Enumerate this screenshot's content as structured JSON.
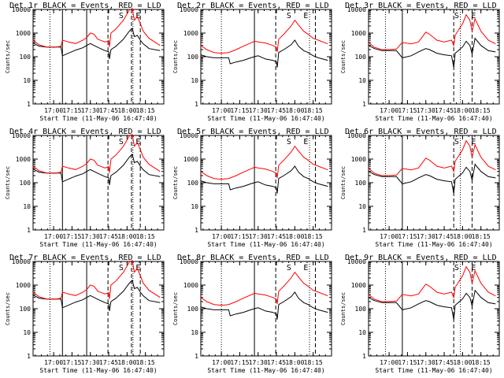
{
  "figure": {
    "x_axis_label": "Start Time (11-May-06 16:47:40)",
    "y_axis_label": "Counts/sec",
    "black_trace_name": "Events",
    "red_trace_name": "LLD"
  },
  "chart_data": [
    {
      "type": "line",
      "title": "Det 1r  BLACK = Events, RED = LLD",
      "markers": [
        {
          "label": "S",
          "time": 17.92
        },
        {
          "label": "E",
          "time": 18.15
        }
      ],
      "solid_lines": [
        17.12,
        17.45
      ],
      "dotted_lines": [
        16.95,
        18.08
      ],
      "dashed_lines": [
        17.74,
        18.06,
        18.18
      ]
    },
    {
      "type": "line",
      "title": "Det 2r  BLACK = Events, RED = LLD",
      "markers": [
        {
          "label": "S",
          "time": 17.92
        },
        {
          "label": "E",
          "time": 18.15
        }
      ],
      "solid_lines": [
        17.45
      ],
      "dotted_lines": [
        17.0,
        18.2
      ],
      "dashed_lines": [
        17.74,
        18.28
      ]
    },
    {
      "type": "line",
      "title": "Det 3r  BLACK = Events, RED = LLD",
      "markers": [
        {
          "label": "S",
          "time": 17.92
        },
        {
          "label": "E",
          "time": 18.15
        }
      ],
      "solid_lines": [
        17.18
      ],
      "dotted_lines": [
        16.95,
        17.97
      ],
      "dashed_lines": [
        17.88,
        18.13
      ]
    },
    {
      "type": "line",
      "title": "Det 4r  BLACK = Events, RED = LLD",
      "markers": [
        {
          "label": "S",
          "time": 17.92
        },
        {
          "label": "E",
          "time": 18.15
        }
      ],
      "solid_lines": [
        17.12,
        17.45
      ],
      "dotted_lines": [
        16.95,
        18.08
      ],
      "dashed_lines": [
        17.74,
        18.06,
        18.18
      ]
    },
    {
      "type": "line",
      "title": "Det 5r  BLACK = Events, RED = LLD",
      "markers": [
        {
          "label": "S",
          "time": 17.92
        },
        {
          "label": "E",
          "time": 18.15
        }
      ],
      "solid_lines": [
        17.45
      ],
      "dotted_lines": [
        17.0,
        18.2
      ],
      "dashed_lines": [
        17.74,
        18.28
      ]
    },
    {
      "type": "line",
      "title": "Det 6r  BLACK = Events, RED = LLD",
      "markers": [
        {
          "label": "S",
          "time": 17.92
        },
        {
          "label": "E",
          "time": 18.15
        }
      ],
      "solid_lines": [
        17.18
      ],
      "dotted_lines": [
        16.95,
        17.97
      ],
      "dashed_lines": [
        17.88,
        18.13
      ]
    },
    {
      "type": "line",
      "title": "Det 7r  BLACK = Events, RED = LLD",
      "markers": [
        {
          "label": "S",
          "time": 17.92
        },
        {
          "label": "E",
          "time": 18.15
        }
      ],
      "solid_lines": [
        17.12,
        17.45
      ],
      "dotted_lines": [
        16.95,
        18.08
      ],
      "dashed_lines": [
        17.74,
        18.06,
        18.18
      ]
    },
    {
      "type": "line",
      "title": "Det 8r  BLACK = Events, RED = LLD",
      "markers": [
        {
          "label": "S",
          "time": 17.92
        },
        {
          "label": "E",
          "time": 18.15
        }
      ],
      "solid_lines": [
        17.45
      ],
      "dotted_lines": [
        17.0,
        18.2
      ],
      "dashed_lines": [
        17.74,
        18.28
      ]
    },
    {
      "type": "line",
      "title": "Det 9r  BLACK = Events, RED = LLD",
      "markers": [
        {
          "label": "S",
          "time": 17.92
        },
        {
          "label": "E",
          "time": 18.15
        }
      ],
      "solid_lines": [
        17.18
      ],
      "dotted_lines": [
        16.95,
        17.97
      ],
      "dashed_lines": [
        17.88,
        18.13
      ]
    }
  ],
  "shared_axes": {
    "xlim_hours": [
      16.72,
      18.5
    ],
    "x_ticks": [
      {
        "value": 17.0,
        "label": "17:00"
      },
      {
        "value": 17.25,
        "label": "17:15"
      },
      {
        "value": 17.5,
        "label": "17:30"
      },
      {
        "value": 17.75,
        "label": "17:45"
      },
      {
        "value": 18.0,
        "label": "18:00"
      },
      {
        "value": 18.25,
        "label": "18:15"
      }
    ],
    "y_scale": "log",
    "ylim": [
      1,
      10000
    ],
    "y_ticks": [
      {
        "value": 1,
        "label": "1"
      },
      {
        "value": 10,
        "label": "10"
      },
      {
        "value": 100,
        "label": "100"
      },
      {
        "value": 1000,
        "label": "1000"
      },
      {
        "value": 10000,
        "label": "10000"
      }
    ]
  },
  "series_a": {
    "red": [
      [
        16.72,
        500
      ],
      [
        16.8,
        320
      ],
      [
        16.9,
        260
      ],
      [
        17.0,
        250
      ],
      [
        17.1,
        275
      ],
      [
        17.12,
        500
      ],
      [
        17.2,
        420
      ],
      [
        17.3,
        360
      ],
      [
        17.4,
        500
      ],
      [
        17.45,
        650
      ],
      [
        17.5,
        1000
      ],
      [
        17.55,
        900
      ],
      [
        17.6,
        550
      ],
      [
        17.7,
        420
      ],
      [
        17.75,
        480
      ],
      [
        17.76,
        260
      ],
      [
        17.78,
        1000
      ],
      [
        17.85,
        1500
      ],
      [
        17.95,
        3500
      ],
      [
        18.03,
        9500
      ],
      [
        18.07,
        11000
      ],
      [
        18.1,
        3500
      ],
      [
        18.14,
        5000
      ],
      [
        18.18,
        2500
      ],
      [
        18.22,
        1200
      ],
      [
        18.3,
        600
      ],
      [
        18.45,
        300
      ]
    ],
    "black": [
      [
        16.72,
        380
      ],
      [
        16.8,
        280
      ],
      [
        16.9,
        255
      ],
      [
        17.0,
        255
      ],
      [
        17.1,
        260
      ],
      [
        17.12,
        110
      ],
      [
        17.2,
        140
      ],
      [
        17.3,
        190
      ],
      [
        17.4,
        240
      ],
      [
        17.45,
        300
      ],
      [
        17.5,
        360
      ],
      [
        17.6,
        250
      ],
      [
        17.7,
        180
      ],
      [
        17.75,
        160
      ],
      [
        17.76,
        80
      ],
      [
        17.78,
        200
      ],
      [
        17.85,
        280
      ],
      [
        17.95,
        550
      ],
      [
        18.03,
        1200
      ],
      [
        18.07,
        1600
      ],
      [
        18.1,
        700
      ],
      [
        18.14,
        800
      ],
      [
        18.18,
        500
      ],
      [
        18.22,
        350
      ],
      [
        18.3,
        220
      ],
      [
        18.45,
        180
      ]
    ]
  },
  "series_b": {
    "red": [
      [
        16.72,
        300
      ],
      [
        16.8,
        200
      ],
      [
        16.9,
        150
      ],
      [
        17.0,
        140
      ],
      [
        17.1,
        150
      ],
      [
        17.2,
        200
      ],
      [
        17.3,
        280
      ],
      [
        17.4,
        380
      ],
      [
        17.45,
        450
      ],
      [
        17.5,
        420
      ],
      [
        17.6,
        380
      ],
      [
        17.7,
        300
      ],
      [
        17.75,
        250
      ],
      [
        17.76,
        160
      ],
      [
        17.78,
        550
      ],
      [
        17.85,
        900
      ],
      [
        17.95,
        2000
      ],
      [
        18.0,
        3500
      ],
      [
        18.05,
        2200
      ],
      [
        18.12,
        1200
      ],
      [
        18.18,
        900
      ],
      [
        18.25,
        600
      ],
      [
        18.32,
        500
      ],
      [
        18.45,
        350
      ]
    ],
    "black": [
      [
        16.72,
        120
      ],
      [
        16.8,
        100
      ],
      [
        16.9,
        90
      ],
      [
        17.0,
        90
      ],
      [
        17.1,
        90
      ],
      [
        17.12,
        50
      ],
      [
        17.2,
        60
      ],
      [
        17.3,
        70
      ],
      [
        17.4,
        90
      ],
      [
        17.45,
        100
      ],
      [
        17.5,
        110
      ],
      [
        17.6,
        80
      ],
      [
        17.7,
        70
      ],
      [
        17.75,
        60
      ],
      [
        17.76,
        35
      ],
      [
        17.78,
        150
      ],
      [
        17.85,
        200
      ],
      [
        17.95,
        320
      ],
      [
        18.0,
        500
      ],
      [
        18.05,
        280
      ],
      [
        18.12,
        180
      ],
      [
        18.18,
        150
      ],
      [
        18.25,
        110
      ],
      [
        18.32,
        90
      ],
      [
        18.45,
        70
      ]
    ]
  },
  "series_c": {
    "red": [
      [
        16.72,
        400
      ],
      [
        16.8,
        250
      ],
      [
        16.9,
        200
      ],
      [
        17.0,
        200
      ],
      [
        17.1,
        210
      ],
      [
        17.18,
        400
      ],
      [
        17.3,
        350
      ],
      [
        17.4,
        420
      ],
      [
        17.5,
        1100
      ],
      [
        17.55,
        900
      ],
      [
        17.65,
        500
      ],
      [
        17.75,
        420
      ],
      [
        17.85,
        500
      ],
      [
        17.88,
        300
      ],
      [
        17.9,
        800
      ],
      [
        18.0,
        2500
      ],
      [
        18.05,
        6000
      ],
      [
        18.1,
        3500
      ],
      [
        18.13,
        1200
      ],
      [
        18.17,
        4000
      ],
      [
        18.25,
        1200
      ],
      [
        18.35,
        500
      ],
      [
        18.45,
        350
      ]
    ],
    "black": [
      [
        16.72,
        300
      ],
      [
        16.8,
        220
      ],
      [
        16.9,
        180
      ],
      [
        17.0,
        180
      ],
      [
        17.1,
        180
      ],
      [
        17.18,
        90
      ],
      [
        17.3,
        110
      ],
      [
        17.4,
        160
      ],
      [
        17.5,
        220
      ],
      [
        17.55,
        200
      ],
      [
        17.65,
        140
      ],
      [
        17.75,
        120
      ],
      [
        17.85,
        110
      ],
      [
        17.88,
        35
      ],
      [
        17.9,
        140
      ],
      [
        18.0,
        260
      ],
      [
        18.05,
        450
      ],
      [
        18.1,
        300
      ],
      [
        18.13,
        130
      ],
      [
        18.17,
        600
      ],
      [
        18.25,
        300
      ],
      [
        18.35,
        180
      ],
      [
        18.45,
        160
      ]
    ]
  }
}
